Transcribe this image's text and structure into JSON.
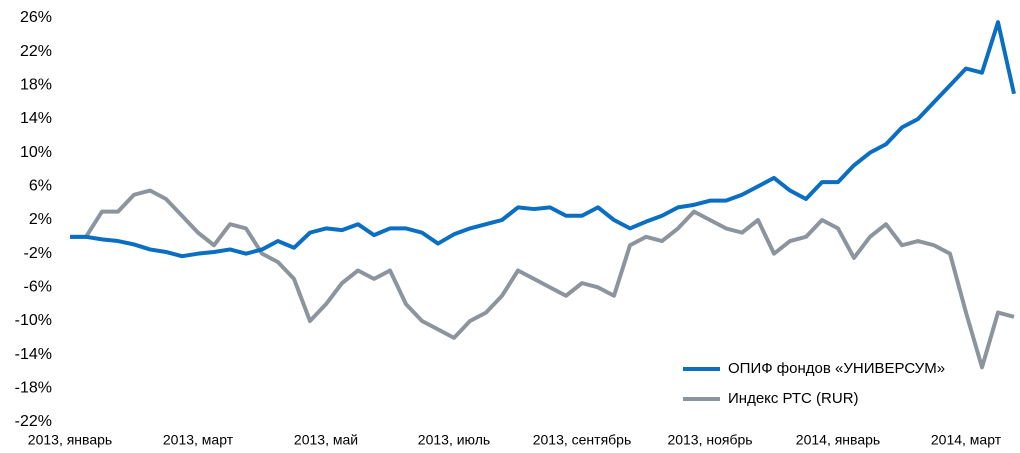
{
  "chart_data": {
    "type": "line",
    "categories": [
      "2013, январь",
      null,
      null,
      null,
      null,
      null,
      null,
      null,
      "2013, март",
      null,
      null,
      null,
      null,
      null,
      null,
      null,
      "2013, май",
      null,
      null,
      null,
      null,
      null,
      null,
      null,
      "2013, июль",
      null,
      null,
      null,
      null,
      null,
      null,
      null,
      "2013, сентябрь",
      null,
      null,
      null,
      null,
      null,
      null,
      null,
      "2013, ноябрь",
      null,
      null,
      null,
      null,
      null,
      null,
      null,
      "2014, январь",
      null,
      null,
      null,
      null,
      null,
      null,
      null,
      "2014, март",
      null,
      null,
      null
    ],
    "series": [
      {
        "name": "ОПИФ фондов «УНИВЕРСУМ»",
        "color": "#0a6fc2",
        "values": [
          0,
          0,
          -0.3,
          -0.5,
          -0.9,
          -1.5,
          -1.8,
          -2.3,
          -2,
          -1.8,
          -1.5,
          -2,
          -1.5,
          -0.5,
          -1.3,
          0.5,
          1,
          0.8,
          1.5,
          0.2,
          1,
          1,
          0.5,
          -0.8,
          0.3,
          1,
          1.5,
          2,
          3.5,
          3.3,
          3.5,
          2.5,
          2.5,
          3.5,
          2,
          1,
          1.8,
          2.5,
          3.5,
          3.8,
          4.3,
          4.3,
          5,
          6,
          7,
          5.5,
          4.5,
          6.5,
          6.5,
          8.5,
          10,
          11,
          13,
          14,
          16,
          18,
          20,
          19.5,
          25.5,
          17
        ]
      },
      {
        "name": "Индекс РТС (RUR)",
        "color": "#8c959d",
        "values": [
          0,
          0,
          3,
          3,
          5,
          5.5,
          4.5,
          2.5,
          0.5,
          -1,
          1.5,
          1,
          -2,
          -3,
          -5,
          -10,
          -8,
          -5.5,
          -4,
          -5,
          -4,
          -8,
          -10,
          -11,
          -12,
          -10,
          -9,
          -7,
          -4,
          -5,
          -6,
          -7,
          -5.5,
          -6,
          -7,
          -1,
          0,
          -0.5,
          1,
          3,
          2,
          1,
          0.5,
          2,
          -2,
          -0.5,
          0,
          2,
          1,
          -2.5,
          0,
          1.5,
          -1,
          -0.5,
          -1,
          -2,
          -9,
          -15.5,
          -9,
          -9.5
        ]
      }
    ],
    "ylim": [
      -22,
      26
    ],
    "yticks": [
      {
        "value": -22,
        "label": "-22%"
      },
      {
        "value": -18,
        "label": "-18%"
      },
      {
        "value": -14,
        "label": "-14%"
      },
      {
        "value": -10,
        "label": "-10%"
      },
      {
        "value": -6,
        "label": "-6%"
      },
      {
        "value": -2,
        "label": "-2%"
      },
      {
        "value": 2,
        "label": "2%"
      },
      {
        "value": 6,
        "label": "6%"
      },
      {
        "value": 10,
        "label": "10%"
      },
      {
        "value": 14,
        "label": "14%"
      },
      {
        "value": 18,
        "label": "18%"
      },
      {
        "value": 22,
        "label": "22%"
      },
      {
        "value": 26,
        "label": "26%"
      }
    ],
    "legend": "lower right"
  }
}
